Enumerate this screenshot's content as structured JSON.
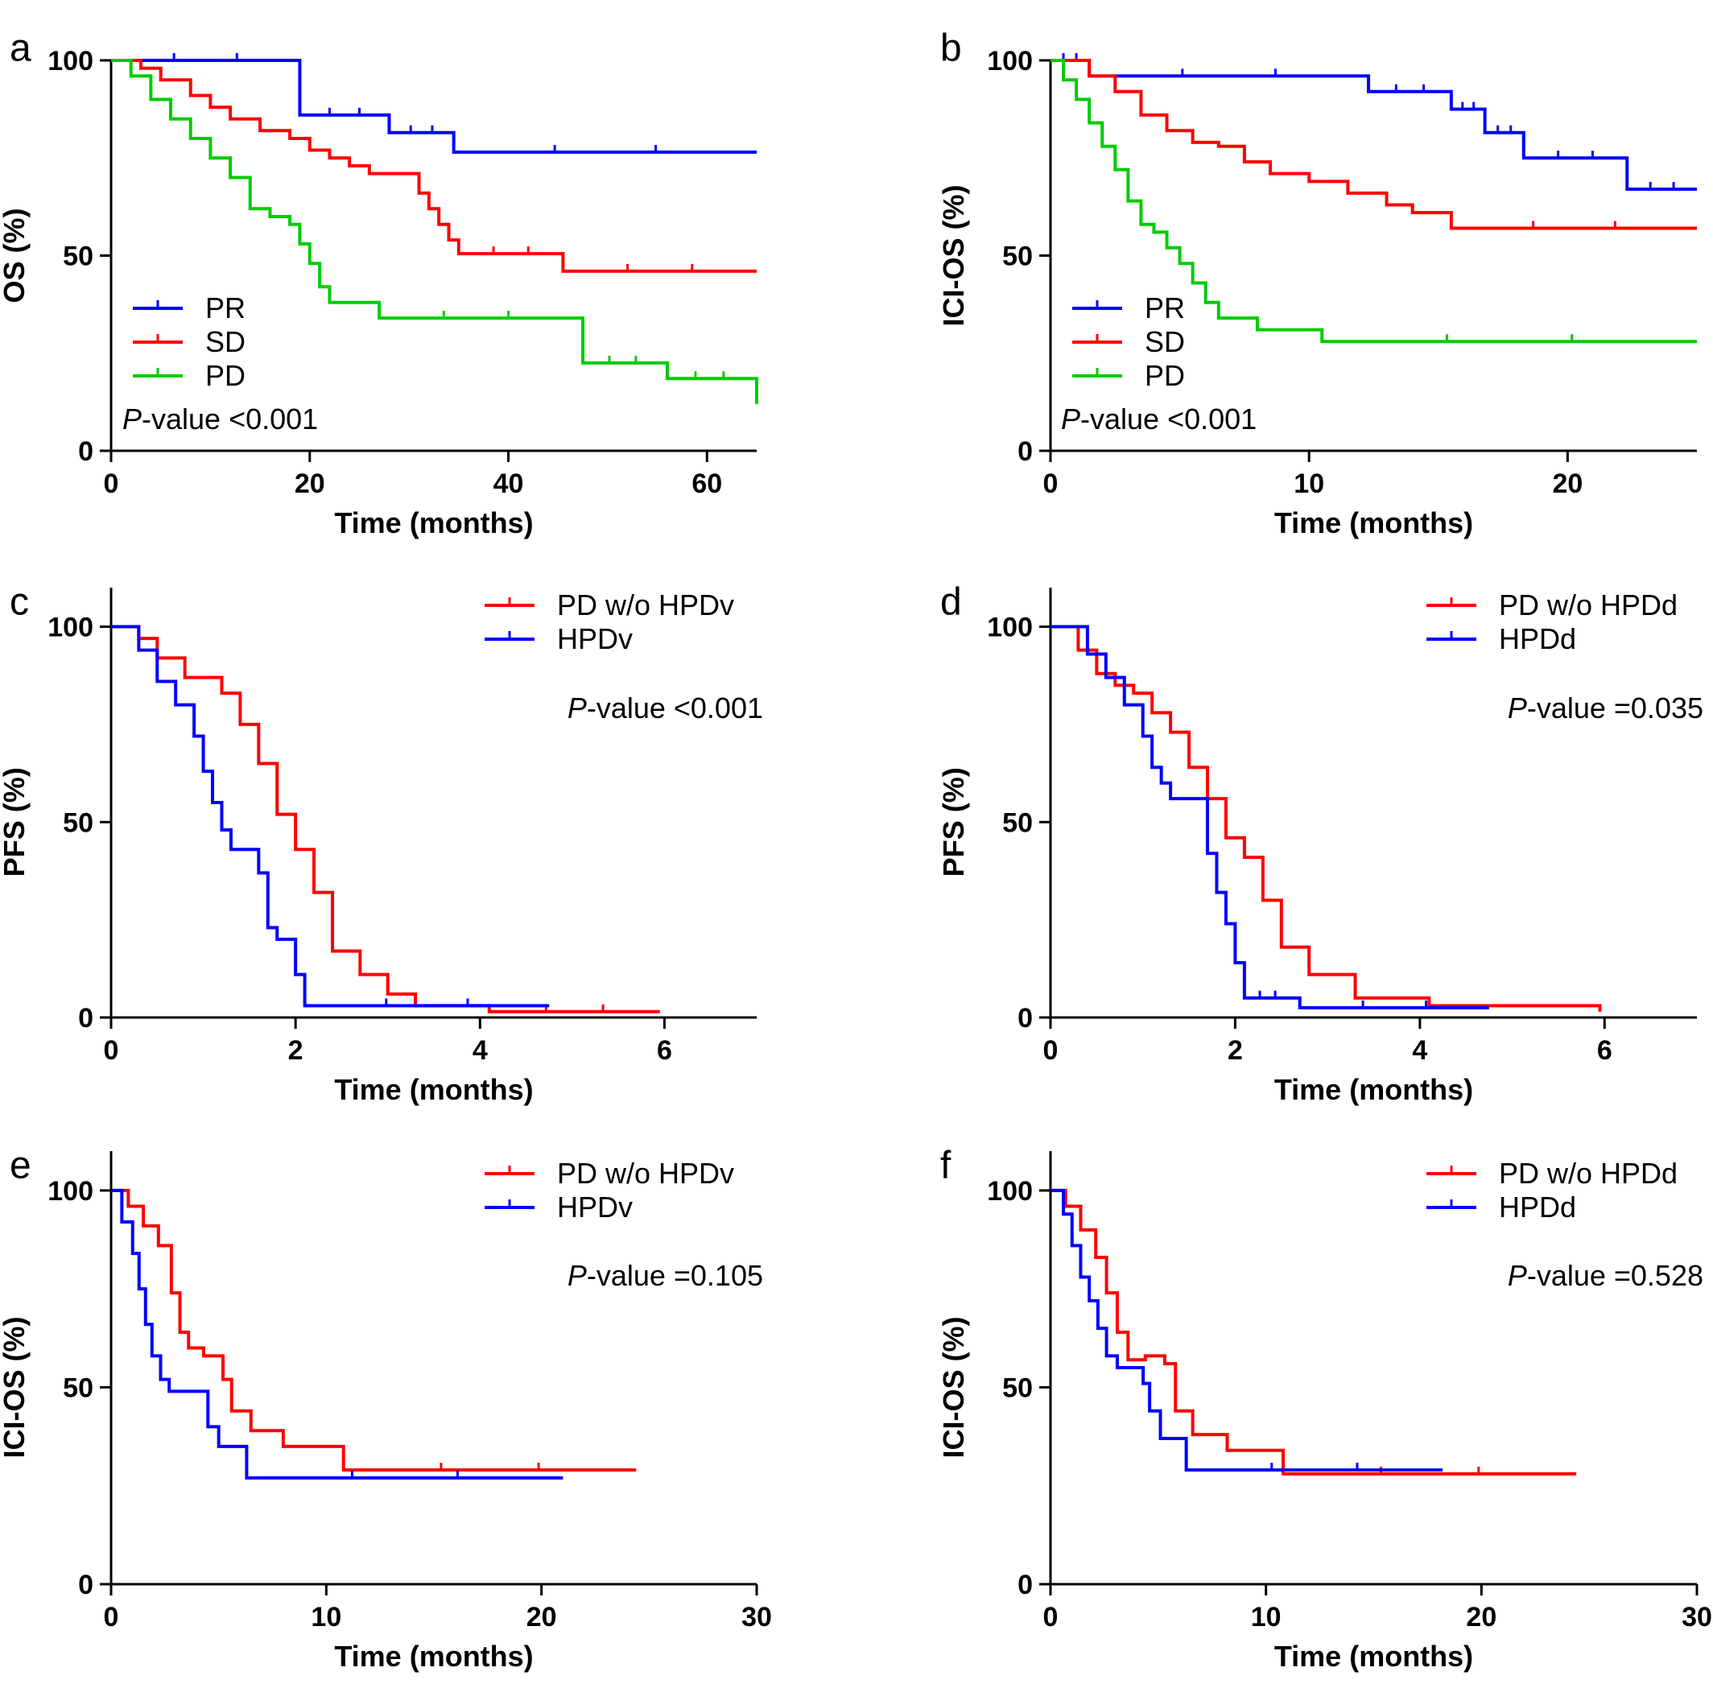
{
  "chart_data": [
    {
      "panel": "a",
      "type": "line",
      "xlabel": "Time (months)",
      "ylabel": "OS (%)",
      "xlim": [
        0,
        65
      ],
      "ylim": [
        0,
        100
      ],
      "xticks": [
        0,
        20,
        40,
        60
      ],
      "yticks": [
        0,
        50,
        100
      ],
      "legend_position": "bottom-left",
      "p_label": "P",
      "p_value": "-value <0.001",
      "series": [
        {
          "name": "PR",
          "color": "#0000ff",
          "x": [
            0,
            19,
            19,
            28,
            28,
            34.5,
            34.5,
            65
          ],
          "y": [
            100,
            100,
            86,
            86,
            81.5,
            81.5,
            76.5,
            76.5
          ]
        },
        {
          "name": "SD",
          "color": "#ff0000",
          "x": [
            0,
            3,
            5,
            8,
            10,
            12,
            15,
            18,
            20,
            22,
            24,
            26,
            28,
            31,
            32,
            33,
            34,
            35,
            45.5,
            45.5,
            65
          ],
          "y": [
            100,
            98,
            95,
            91,
            88,
            85,
            82,
            80,
            77,
            75,
            73,
            71,
            71,
            66,
            62,
            58,
            54,
            50.5,
            50.5,
            46,
            46
          ]
        },
        {
          "name": "PD",
          "color": "#00cc00",
          "x": [
            0,
            2,
            4,
            6,
            8,
            10,
            12,
            14,
            16,
            18,
            19,
            20,
            21,
            22,
            24,
            27,
            27,
            46.5,
            47.5,
            55.5,
            56,
            64.5,
            65
          ],
          "y": [
            100,
            96,
            90,
            85,
            80,
            75,
            70,
            62,
            60,
            58,
            53,
            48,
            42,
            38,
            38,
            34,
            34,
            34,
            22.5,
            22.5,
            18.5,
            18.5,
            12
          ]
        }
      ]
    },
    {
      "panel": "b",
      "type": "line",
      "xlabel": "Time (months)",
      "ylabel": "ICI-OS (%)",
      "xlim": [
        0,
        25
      ],
      "ylim": [
        0,
        100
      ],
      "xticks": [
        0,
        10,
        20
      ],
      "yticks": [
        0,
        50,
        100
      ],
      "legend_position": "bottom-left",
      "p_label": "P",
      "p_value": "-value <0.001",
      "series": [
        {
          "name": "PR",
          "color": "#0000ff",
          "x": [
            0,
            1.5,
            1.5,
            12.3,
            12.3,
            15.5,
            15.5,
            16.8,
            16.8,
            18.3,
            18.3,
            22.3,
            22.3,
            25
          ],
          "y": [
            100,
            100,
            96,
            96,
            92,
            92,
            87.5,
            87.5,
            81.5,
            81.5,
            75,
            75,
            67,
            67
          ]
        },
        {
          "name": "SD",
          "color": "#ff0000",
          "x": [
            0,
            1.5,
            2.5,
            3.5,
            4.5,
            5.5,
            6.5,
            7.5,
            8.5,
            10,
            11.5,
            13,
            14,
            15.5,
            15.5,
            25
          ],
          "y": [
            100,
            96,
            92,
            86,
            82,
            79,
            78,
            74,
            71,
            69,
            66,
            63,
            61,
            57,
            57,
            57
          ]
        },
        {
          "name": "PD",
          "color": "#00cc00",
          "x": [
            0,
            0.5,
            1,
            1.5,
            2,
            2.5,
            3,
            3.5,
            4,
            4.5,
            5,
            5.5,
            6,
            6.5,
            8,
            10.5,
            10.5,
            25
          ],
          "y": [
            100,
            95,
            90,
            84,
            78,
            72,
            64,
            58,
            56,
            52,
            48,
            43,
            38,
            34,
            31,
            28,
            28,
            28
          ]
        }
      ]
    },
    {
      "panel": "c",
      "type": "line",
      "xlabel": "Time (months)",
      "ylabel": "PFS (%)",
      "xlim": [
        0,
        7
      ],
      "ylim": [
        0,
        110
      ],
      "xticks": [
        0,
        2,
        4,
        6
      ],
      "yticks": [
        0,
        50,
        100
      ],
      "legend_position": "top-right",
      "p_label": "P",
      "p_value": "-value <0.001",
      "series": [
        {
          "name": "PD w/o HPDv",
          "color": "#ff0000",
          "x": [
            0,
            0.3,
            0.5,
            0.8,
            1.2,
            1.4,
            1.6,
            1.8,
            2.0,
            2.2,
            2.4,
            2.7,
            3.0,
            3.3,
            4.1,
            5.95
          ],
          "y": [
            100,
            97,
            92,
            87,
            83,
            75,
            65,
            52,
            43,
            32,
            17,
            11,
            6,
            3,
            1.5,
            1.5
          ]
        },
        {
          "name": "HPDv",
          "color": "#0000ff",
          "x": [
            0,
            0.3,
            0.5,
            0.7,
            0.9,
            1.0,
            1.1,
            1.2,
            1.3,
            1.4,
            1.6,
            1.7,
            1.8,
            2.0,
            2.1,
            4.75
          ],
          "y": [
            100,
            94,
            86,
            80,
            72,
            63,
            55,
            48,
            43,
            43,
            37,
            23,
            20,
            11,
            3,
            3
          ]
        }
      ]
    },
    {
      "panel": "d",
      "type": "line",
      "xlabel": "Time (months)",
      "ylabel": "PFS (%)",
      "xlim": [
        0,
        7
      ],
      "ylim": [
        0,
        110
      ],
      "xticks": [
        0,
        2,
        4,
        6
      ],
      "yticks": [
        0,
        50,
        100
      ],
      "legend_position": "top-right",
      "p_label": "P",
      "p_value": "-value =0.035",
      "series": [
        {
          "name": "PD w/o HPDd",
          "color": "#ff0000",
          "x": [
            0,
            0.3,
            0.5,
            0.7,
            0.9,
            1.1,
            1.3,
            1.5,
            1.7,
            1.9,
            2.1,
            2.3,
            2.5,
            2.8,
            3.3,
            4.1,
            5.95
          ],
          "y": [
            100,
            94,
            88,
            85,
            83,
            78,
            73,
            64,
            56,
            46,
            41,
            30,
            18,
            11,
            5,
            3,
            1.5
          ]
        },
        {
          "name": "HPDd",
          "color": "#0000ff",
          "x": [
            0,
            0.4,
            0.6,
            0.8,
            1.0,
            1.1,
            1.2,
            1.3,
            1.5,
            1.7,
            1.8,
            1.9,
            2.0,
            2.1,
            2.6,
            2.7,
            4.75
          ],
          "y": [
            100,
            93,
            87,
            80,
            72,
            64,
            60,
            56,
            56,
            42,
            32,
            24,
            14,
            5,
            5,
            2.5,
            2.5
          ]
        }
      ]
    },
    {
      "panel": "e",
      "type": "line",
      "xlabel": "Time (months)",
      "ylabel": "ICI-OS (%)",
      "xlim": [
        0,
        30
      ],
      "ylim": [
        0,
        110
      ],
      "xticks": [
        0,
        10,
        20,
        30
      ],
      "yticks": [
        0,
        50,
        100
      ],
      "legend_position": "top-right",
      "p_label": "P",
      "p_value": "-value =0.105",
      "series": [
        {
          "name": "PD w/o HPDv",
          "color": "#ff0000",
          "x": [
            0,
            0.8,
            1.5,
            2.2,
            2.8,
            3.2,
            3.6,
            4.3,
            5.2,
            5.6,
            6.5,
            8,
            10.8,
            10.8,
            24.4
          ],
          "y": [
            100,
            96,
            91,
            86,
            74,
            64,
            60,
            58,
            52,
            44,
            39,
            35,
            29,
            29,
            29
          ]
        },
        {
          "name": "HPDv",
          "color": "#0000ff",
          "x": [
            0,
            0.5,
            1,
            1.3,
            1.6,
            1.9,
            2.3,
            2.7,
            4.2,
            4.5,
            5,
            6.3,
            6.3,
            21
          ],
          "y": [
            100,
            92,
            84,
            75,
            66,
            58,
            52,
            49,
            49,
            40,
            35,
            27,
            27,
            27
          ]
        }
      ]
    },
    {
      "panel": "f",
      "type": "line",
      "xlabel": "Time (months)",
      "ylabel": "ICI-OS (%)",
      "xlim": [
        0,
        30
      ],
      "ylim": [
        0,
        110
      ],
      "xticks": [
        0,
        10,
        20,
        30
      ],
      "yticks": [
        0,
        50,
        100
      ],
      "legend_position": "top-right",
      "p_label": "P",
      "p_value": "-value =0.528",
      "series": [
        {
          "name": "PD w/o HPDd",
          "color": "#ff0000",
          "x": [
            0,
            0.7,
            1.4,
            2.1,
            2.6,
            3.1,
            3.6,
            4.4,
            5.3,
            5.8,
            6.6,
            8.2,
            10.8,
            10.8,
            24.4
          ],
          "y": [
            100,
            96,
            90,
            83,
            74,
            64,
            57,
            58,
            56,
            44,
            38,
            34,
            30,
            28,
            28
          ]
        },
        {
          "name": "HPDd",
          "color": "#0000ff",
          "x": [
            0,
            0.6,
            1,
            1.4,
            1.8,
            2.2,
            2.6,
            3.1,
            4.3,
            4.6,
            5.1,
            6.3,
            6.3,
            18.2
          ],
          "y": [
            100,
            94,
            86,
            78,
            72,
            65,
            58,
            55,
            51,
            44,
            37,
            30,
            29,
            29
          ]
        }
      ]
    }
  ]
}
